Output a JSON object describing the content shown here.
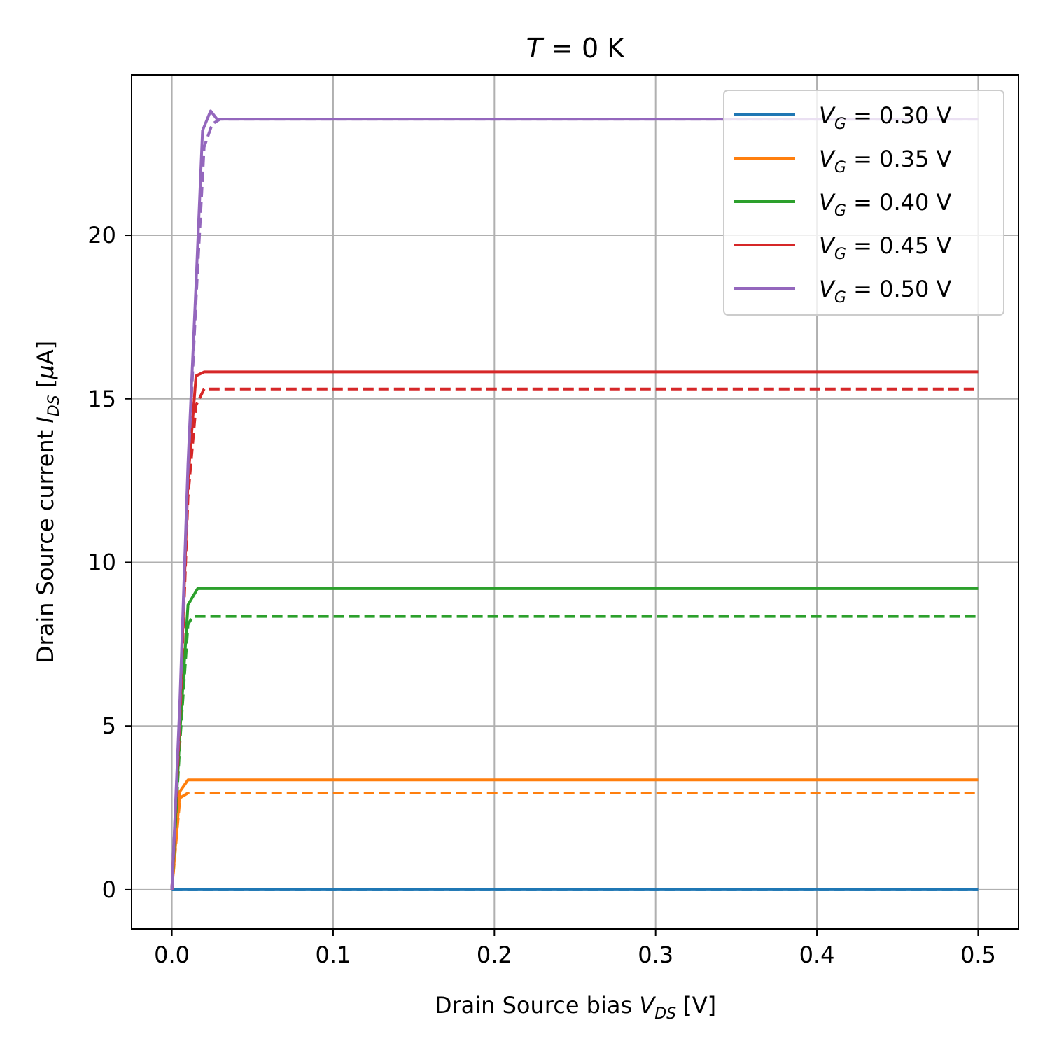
{
  "chart_data": {
    "type": "line",
    "title": {
      "var": "T",
      "rest": " = 0 K"
    },
    "xlabel": {
      "prefix": "Drain Source bias ",
      "var": "V",
      "sub": "DS",
      "suffix": " [V]"
    },
    "ylabel": {
      "prefix": "Drain Source current ",
      "var": "I",
      "sub": "DS",
      "suffix": " [",
      "mu": "μ",
      "unit": "A]"
    },
    "xlim": [
      -0.025,
      0.525
    ],
    "ylim": [
      -1.2,
      24.9
    ],
    "xticks": [
      0.0,
      0.1,
      0.2,
      0.3,
      0.4,
      0.5
    ],
    "xtick_labels": [
      "0.0",
      "0.1",
      "0.2",
      "0.3",
      "0.4",
      "0.5"
    ],
    "yticks": [
      0,
      5,
      10,
      15,
      20
    ],
    "ytick_labels": [
      "0",
      "5",
      "10",
      "15",
      "20"
    ],
    "grid": true,
    "legend_position": "top-right",
    "series": [
      {
        "name": "V_G = 0.30 V",
        "legend": {
          "var": "V",
          "sub": "G",
          "rest": " = 0.30 V"
        },
        "color": "#1f77b4",
        "solid": [
          [
            0,
            0
          ],
          [
            0.5,
            0
          ]
        ],
        "dashed": [
          [
            0,
            0
          ],
          [
            0.5,
            0
          ]
        ]
      },
      {
        "name": "V_G = 0.35 V",
        "legend": {
          "var": "V",
          "sub": "G",
          "rest": " = 0.35 V"
        },
        "color": "#ff7f0e",
        "solid": [
          [
            0,
            0
          ],
          [
            0.005,
            3.0
          ],
          [
            0.01,
            3.35
          ],
          [
            0.5,
            3.35
          ]
        ],
        "dashed": [
          [
            0,
            0
          ],
          [
            0.005,
            2.8
          ],
          [
            0.01,
            2.95
          ],
          [
            0.5,
            2.95
          ]
        ]
      },
      {
        "name": "V_G = 0.40 V",
        "legend": {
          "var": "V",
          "sub": "G",
          "rest": " = 0.40 V"
        },
        "color": "#2ca02c",
        "solid": [
          [
            0,
            0
          ],
          [
            0.005,
            4.8
          ],
          [
            0.01,
            8.7
          ],
          [
            0.016,
            9.2
          ],
          [
            0.5,
            9.2
          ]
        ],
        "dashed": [
          [
            0,
            0
          ],
          [
            0.005,
            4.5
          ],
          [
            0.01,
            8.1
          ],
          [
            0.013,
            8.35
          ],
          [
            0.5,
            8.35
          ]
        ]
      },
      {
        "name": "V_G = 0.45 V",
        "legend": {
          "var": "V",
          "sub": "G",
          "rest": " = 0.45 V"
        },
        "color": "#d62728",
        "solid": [
          [
            0,
            0
          ],
          [
            0.005,
            5.5
          ],
          [
            0.01,
            12.5
          ],
          [
            0.015,
            15.7
          ],
          [
            0.02,
            15.82
          ],
          [
            0.5,
            15.82
          ]
        ],
        "dashed": [
          [
            0,
            0
          ],
          [
            0.005,
            5.2
          ],
          [
            0.01,
            12.0
          ],
          [
            0.015,
            14.8
          ],
          [
            0.02,
            15.3
          ],
          [
            0.5,
            15.3
          ]
        ]
      },
      {
        "name": "V_G = 0.50 V",
        "legend": {
          "var": "V",
          "sub": "G",
          "rest": " = 0.50 V"
        },
        "color": "#9467bd",
        "solid": [
          [
            0,
            0
          ],
          [
            0.005,
            5.8
          ],
          [
            0.01,
            13.0
          ],
          [
            0.015,
            18.5
          ],
          [
            0.019,
            23.2
          ],
          [
            0.024,
            23.8
          ],
          [
            0.028,
            23.55
          ],
          [
            0.5,
            23.55
          ]
        ],
        "dashed": [
          [
            0,
            0
          ],
          [
            0.005,
            5.6
          ],
          [
            0.01,
            12.8
          ],
          [
            0.015,
            18.0
          ],
          [
            0.02,
            22.7
          ],
          [
            0.025,
            23.4
          ],
          [
            0.03,
            23.55
          ],
          [
            0.5,
            23.55
          ]
        ]
      }
    ]
  }
}
